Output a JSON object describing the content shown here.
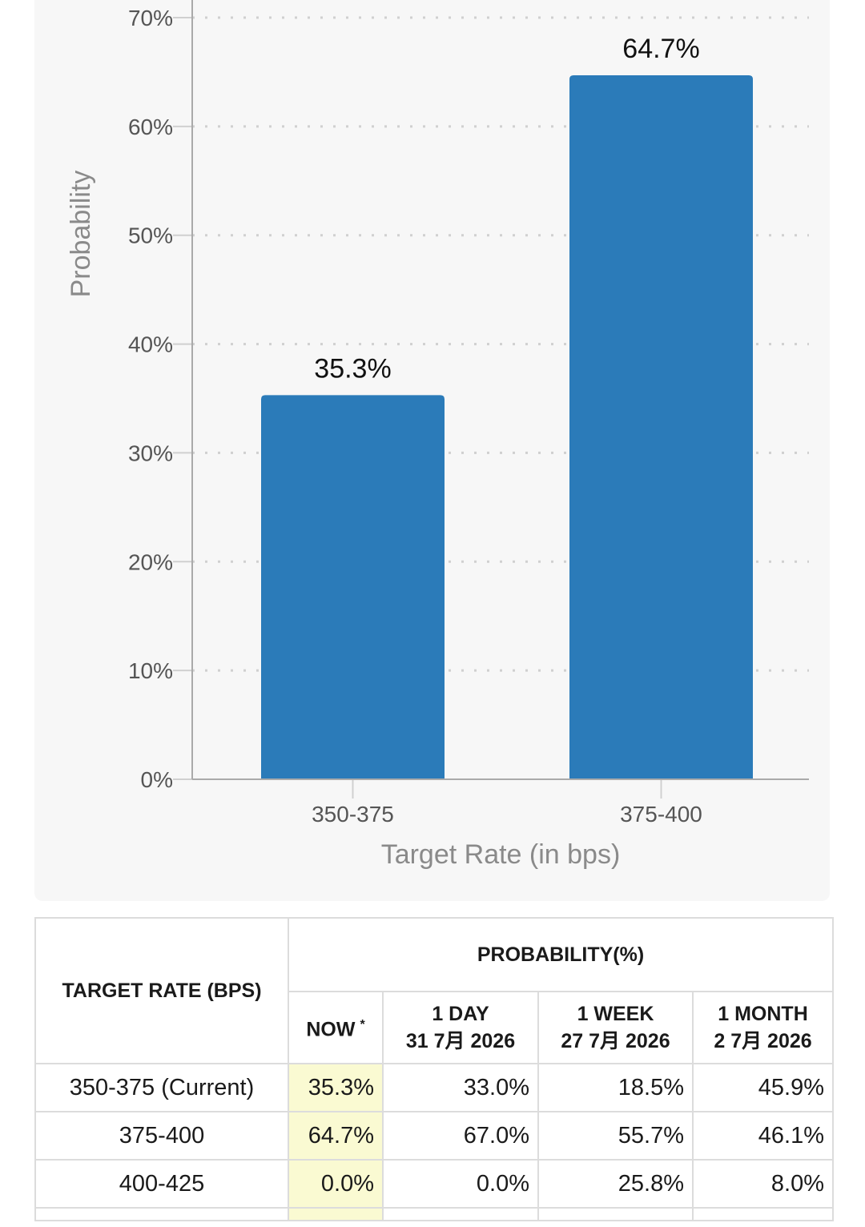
{
  "chart_data": {
    "type": "bar",
    "categories": [
      "350-375",
      "375-400"
    ],
    "values": [
      35.3,
      64.7
    ],
    "value_labels": [
      "35.3%",
      "64.7%"
    ],
    "xlabel": "Target Rate (in bps)",
    "ylabel": "Probability",
    "ylim": [
      0,
      70
    ],
    "yticks": [
      0,
      10,
      20,
      30,
      40,
      50,
      60,
      70
    ],
    "ytick_labels": [
      "0%",
      "10%",
      "20%",
      "30%",
      "40%",
      "50%",
      "60%",
      "70%"
    ],
    "grid": true,
    "bar_color": "#2b7bb9"
  },
  "table": {
    "header_rate": "TARGET RATE (BPS)",
    "header_prob": "PROBABILITY(%)",
    "now_label": "NOW",
    "now_marker": "*",
    "day_label": "1 DAY",
    "day_date": "31 7月 2026",
    "week_label": "1 WEEK",
    "week_date": "27 7月 2026",
    "month_label": "1 MONTH",
    "month_date": "2 7月 2026",
    "rows": [
      {
        "rate": "350-375 (Current)",
        "now": "35.3%",
        "day": "33.0%",
        "week": "18.5%",
        "month": "45.9%"
      },
      {
        "rate": "375-400",
        "now": "64.7%",
        "day": "67.0%",
        "week": "55.7%",
        "month": "46.1%"
      },
      {
        "rate": "400-425",
        "now": "0.0%",
        "day": "0.0%",
        "week": "25.8%",
        "month": "8.0%"
      }
    ]
  }
}
